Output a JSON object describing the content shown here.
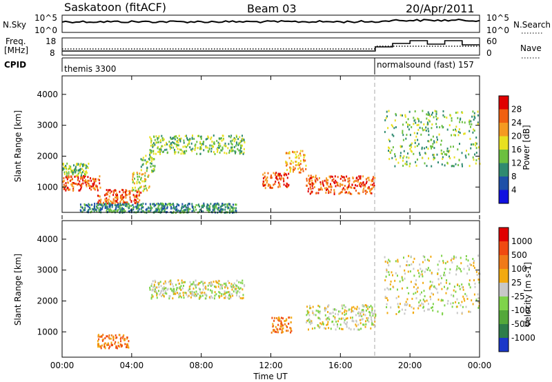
{
  "header": {
    "station": "Saskatoon (fitACF)",
    "beam": "Beam 03",
    "date": "20/Apr/2011"
  },
  "strip": {
    "nsky_label": "N.Sky",
    "nsky_ticks": [
      "10^5",
      "10^0"
    ],
    "nsearch_label": "N.Search",
    "freq_label_line1": "Freq.",
    "freq_label_line2": "[MHz]",
    "freq_ticks": [
      18,
      8
    ],
    "nave_label": "Nave",
    "nave_ticks": [
      60,
      0
    ],
    "cpid_label": "CPID",
    "cpid_segments": [
      {
        "start": 0,
        "end": 18.0,
        "label": "themis 3300"
      },
      {
        "start": 18.0,
        "end": 24,
        "label": "normalsound (fast) 157"
      }
    ]
  },
  "chart_data": [
    {
      "type": "heatmap",
      "quantity": "power",
      "ylabel": "Slant Range [km]",
      "ylim": [
        180,
        4600
      ],
      "yticks": [
        1000,
        2000,
        3000,
        4000
      ],
      "xlim": [
        0,
        24
      ],
      "colorbar_label": "Power [dB]",
      "colorbar_ticks": [
        "4",
        "8",
        "12",
        "16",
        "20",
        "24",
        "28"
      ],
      "colorbar_colors": [
        "#1010e0",
        "#1e50a8",
        "#2f8a70",
        "#6cc040",
        "#e8e020",
        "#f59a20",
        "#f06010",
        "#e00000"
      ],
      "regions": [
        {
          "t_start": 0.0,
          "t_end": 2.2,
          "r_start": 900,
          "r_end": 1400,
          "level": 6
        },
        {
          "t_start": 0.0,
          "t_end": 1.5,
          "r_start": 1400,
          "r_end": 1800,
          "level": 3
        },
        {
          "t_start": 2.0,
          "t_end": 4.5,
          "r_start": 500,
          "r_end": 950,
          "level": 6
        },
        {
          "t_start": 4.0,
          "t_end": 5.0,
          "r_start": 900,
          "r_end": 1500,
          "level": 4
        },
        {
          "t_start": 4.5,
          "t_end": 5.3,
          "r_start": 1500,
          "r_end": 2100,
          "level": 3
        },
        {
          "t_start": 5.0,
          "t_end": 10.5,
          "r_start": 2100,
          "r_end": 2700,
          "level": 3
        },
        {
          "t_start": 1.0,
          "t_end": 10.0,
          "r_start": 200,
          "r_end": 500,
          "level": 2
        },
        {
          "t_start": 11.5,
          "t_end": 13.0,
          "r_start": 1000,
          "r_end": 1500,
          "level": 6
        },
        {
          "t_start": 12.8,
          "t_end": 14.0,
          "r_start": 1500,
          "r_end": 2200,
          "level": 5
        },
        {
          "t_start": 14.0,
          "t_end": 18.0,
          "r_start": 800,
          "r_end": 1400,
          "level": 6
        },
        {
          "t_start": 18.5,
          "t_end": 24.0,
          "r_start": 1700,
          "r_end": 3500,
          "level": 3
        }
      ]
    },
    {
      "type": "heatmap",
      "quantity": "velocity",
      "ylabel": "Slant Range [km]",
      "ylim": [
        180,
        4600
      ],
      "yticks": [
        1000,
        2000,
        3000,
        4000
      ],
      "xlim": [
        0,
        24
      ],
      "xticks": [
        "00:00",
        "04:00",
        "08:00",
        "12:00",
        "16:00",
        "20:00",
        "00:00"
      ],
      "xlabel": "Time UT",
      "colorbar_label": "Velocity [m s-1]",
      "colorbar_ticks": [
        "1000",
        "500",
        "100",
        "25",
        "-25",
        "-100",
        "-500",
        "-1000"
      ],
      "colorbar_colors": [
        "#1a37c9",
        "#2e7d4a",
        "#54a83a",
        "#7fd34a",
        "#c8c8c8",
        "#f2aa10",
        "#f07a18",
        "#f04a10",
        "#e00000"
      ],
      "regions": [
        {
          "t_start": 2.0,
          "t_end": 3.8,
          "r_start": 500,
          "r_end": 950,
          "level": 6
        },
        {
          "t_start": 12.0,
          "t_end": 13.2,
          "r_start": 1000,
          "r_end": 1500,
          "level": 6
        },
        {
          "t_start": 5.0,
          "t_end": 10.5,
          "r_start": 2100,
          "r_end": 2700,
          "level": 4
        },
        {
          "t_start": 14.0,
          "t_end": 18.0,
          "r_start": 1100,
          "r_end": 1900,
          "level": 4
        },
        {
          "t_start": 18.5,
          "t_end": 24.0,
          "r_start": 1600,
          "r_end": 3500,
          "level": 4
        }
      ]
    }
  ]
}
